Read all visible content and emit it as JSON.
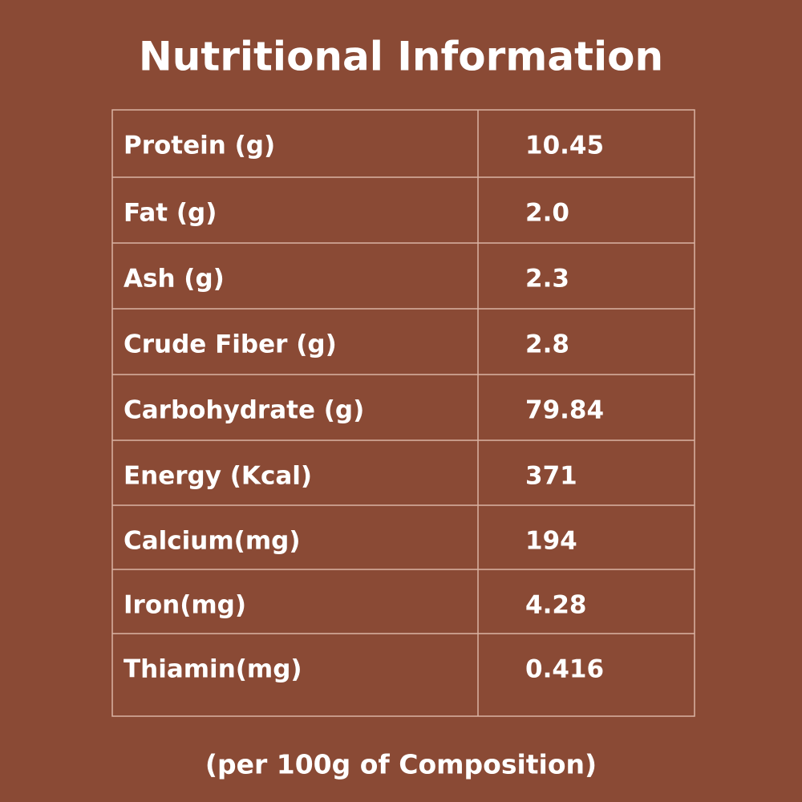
{
  "title": "Nutritional Information",
  "table": {
    "rows": [
      [
        "Protein (g)",
        "10.45"
      ],
      [
        "Fat (g)",
        "2.0"
      ],
      [
        "Ash (g)",
        "2.3"
      ],
      [
        "Crude Fiber (g)",
        "2.8"
      ],
      [
        "Carbohydrate (g)",
        "79.84"
      ],
      [
        "Energy (Kcal)",
        "371"
      ],
      [
        "Calcium(mg)",
        "194"
      ],
      [
        "Iron(mg)",
        "4.28"
      ],
      [
        "Thiamin(mg)",
        "0.416"
      ]
    ]
  },
  "footnote": "(per 100g of Composition)"
}
